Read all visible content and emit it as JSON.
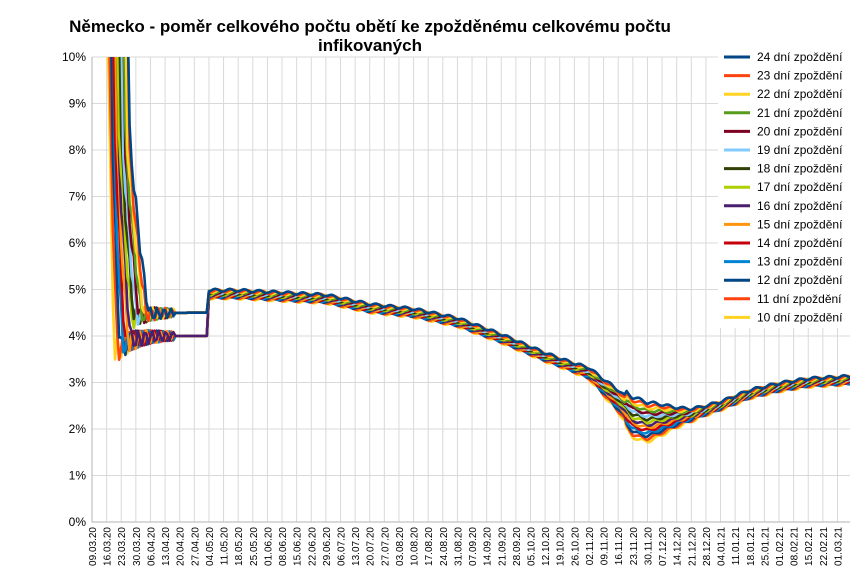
{
  "chart_data": {
    "type": "line",
    "title_line1": "Německo - poměr celkového počtu obětí ke zpožděnému celkovému počtu",
    "title_line2": "infikovaných",
    "y_unit": "%",
    "ylim": [
      0,
      10
    ],
    "yticks": [
      "0%",
      "1%",
      "2%",
      "3%",
      "4%",
      "5%",
      "6%",
      "7%",
      "8%",
      "9%",
      "10%"
    ],
    "x_start": "2020-03-09",
    "x_end": "2021-03-07",
    "x_tick_labels": [
      "09.03.20",
      "16.03.20",
      "23.03.20",
      "30.03.20",
      "06.04.20",
      "13.04.20",
      "20.04.20",
      "27.04.20",
      "04.05.20",
      "11.05.20",
      "18.05.20",
      "25.05.20",
      "01.06.20",
      "08.06.20",
      "15.06.20",
      "22.06.20",
      "29.06.20",
      "06.07.20",
      "13.07.20",
      "20.07.20",
      "27.07.20",
      "03.08.20",
      "10.08.20",
      "17.08.20",
      "24.08.20",
      "31.08.20",
      "07.09.20",
      "14.09.20",
      "21.09.20",
      "28.09.20",
      "05.10.20",
      "12.10.20",
      "19.10.20",
      "26.10.20",
      "02.11.20",
      "09.11.20",
      "16.11.20",
      "23.11.20",
      "30.11.20",
      "07.12.20",
      "14.12.20",
      "21.12.20",
      "28.12.20",
      "04.01.21",
      "11.01.21",
      "18.01.21",
      "25.01.21",
      "01.02.21",
      "08.02.21",
      "15.02.21",
      "22.02.21",
      "01.03.21"
    ],
    "grid": true,
    "legend_position": "right",
    "series": [
      {
        "name": "24 dní zpoždění",
        "color": "#004586",
        "delay": 24
      },
      {
        "name": "23 dní zpoždění",
        "color": "#ff420e",
        "delay": 23
      },
      {
        "name": "22 dní zpoždění",
        "color": "#ffd320",
        "delay": 22
      },
      {
        "name": "21 dní zpoždění",
        "color": "#579d1c",
        "delay": 21
      },
      {
        "name": "20 dní zpoždění",
        "color": "#7e0021",
        "delay": 20
      },
      {
        "name": "19 dní zpoždění",
        "color": "#83caff",
        "delay": 19
      },
      {
        "name": "18 dní zpoždění",
        "color": "#314004",
        "delay": 18
      },
      {
        "name": "17 dní zpoždění",
        "color": "#aecf00",
        "delay": 17
      },
      {
        "name": "16 dní zpoždění",
        "color": "#4b1f6f",
        "delay": 16
      },
      {
        "name": "15 dní zpoždění",
        "color": "#ff950e",
        "delay": 15
      },
      {
        "name": "14 dní zpoždění",
        "color": "#c5000b",
        "delay": 14
      },
      {
        "name": "13 dní zpoždění",
        "color": "#0084d1",
        "delay": 13
      },
      {
        "name": "12 dní zpoždění",
        "color": "#004586",
        "delay": 12
      },
      {
        "name": "11 dní zpoždění",
        "color": "#ff420e",
        "delay": 11
      },
      {
        "name": "10 dní zpoždění",
        "color": "#ffd320",
        "delay": 10
      }
    ],
    "base_curve": [
      {
        "x": "2020-05-04",
        "y": 4.9
      },
      {
        "x": "2020-05-18",
        "y": 4.9
      },
      {
        "x": "2020-06-08",
        "y": 4.85
      },
      {
        "x": "2020-06-29",
        "y": 4.8
      },
      {
        "x": "2020-07-20",
        "y": 4.6
      },
      {
        "x": "2020-08-10",
        "y": 4.5
      },
      {
        "x": "2020-08-31",
        "y": 4.3
      },
      {
        "x": "2020-09-21",
        "y": 3.95
      },
      {
        "x": "2020-10-12",
        "y": 3.55
      },
      {
        "x": "2020-11-02",
        "y": 3.2
      },
      {
        "x": "2020-11-16",
        "y": 2.6
      },
      {
        "x": "2020-11-23",
        "y": 2.25
      },
      {
        "x": "2020-11-30",
        "y": 2.15
      },
      {
        "x": "2020-12-07",
        "y": 2.2
      },
      {
        "x": "2020-12-21",
        "y": 2.3
      },
      {
        "x": "2021-01-04",
        "y": 2.5
      },
      {
        "x": "2021-01-18",
        "y": 2.75
      },
      {
        "x": "2021-02-01",
        "y": 2.9
      },
      {
        "x": "2021-02-15",
        "y": 3.0
      },
      {
        "x": "2021-03-07",
        "y": 3.05
      }
    ]
  }
}
